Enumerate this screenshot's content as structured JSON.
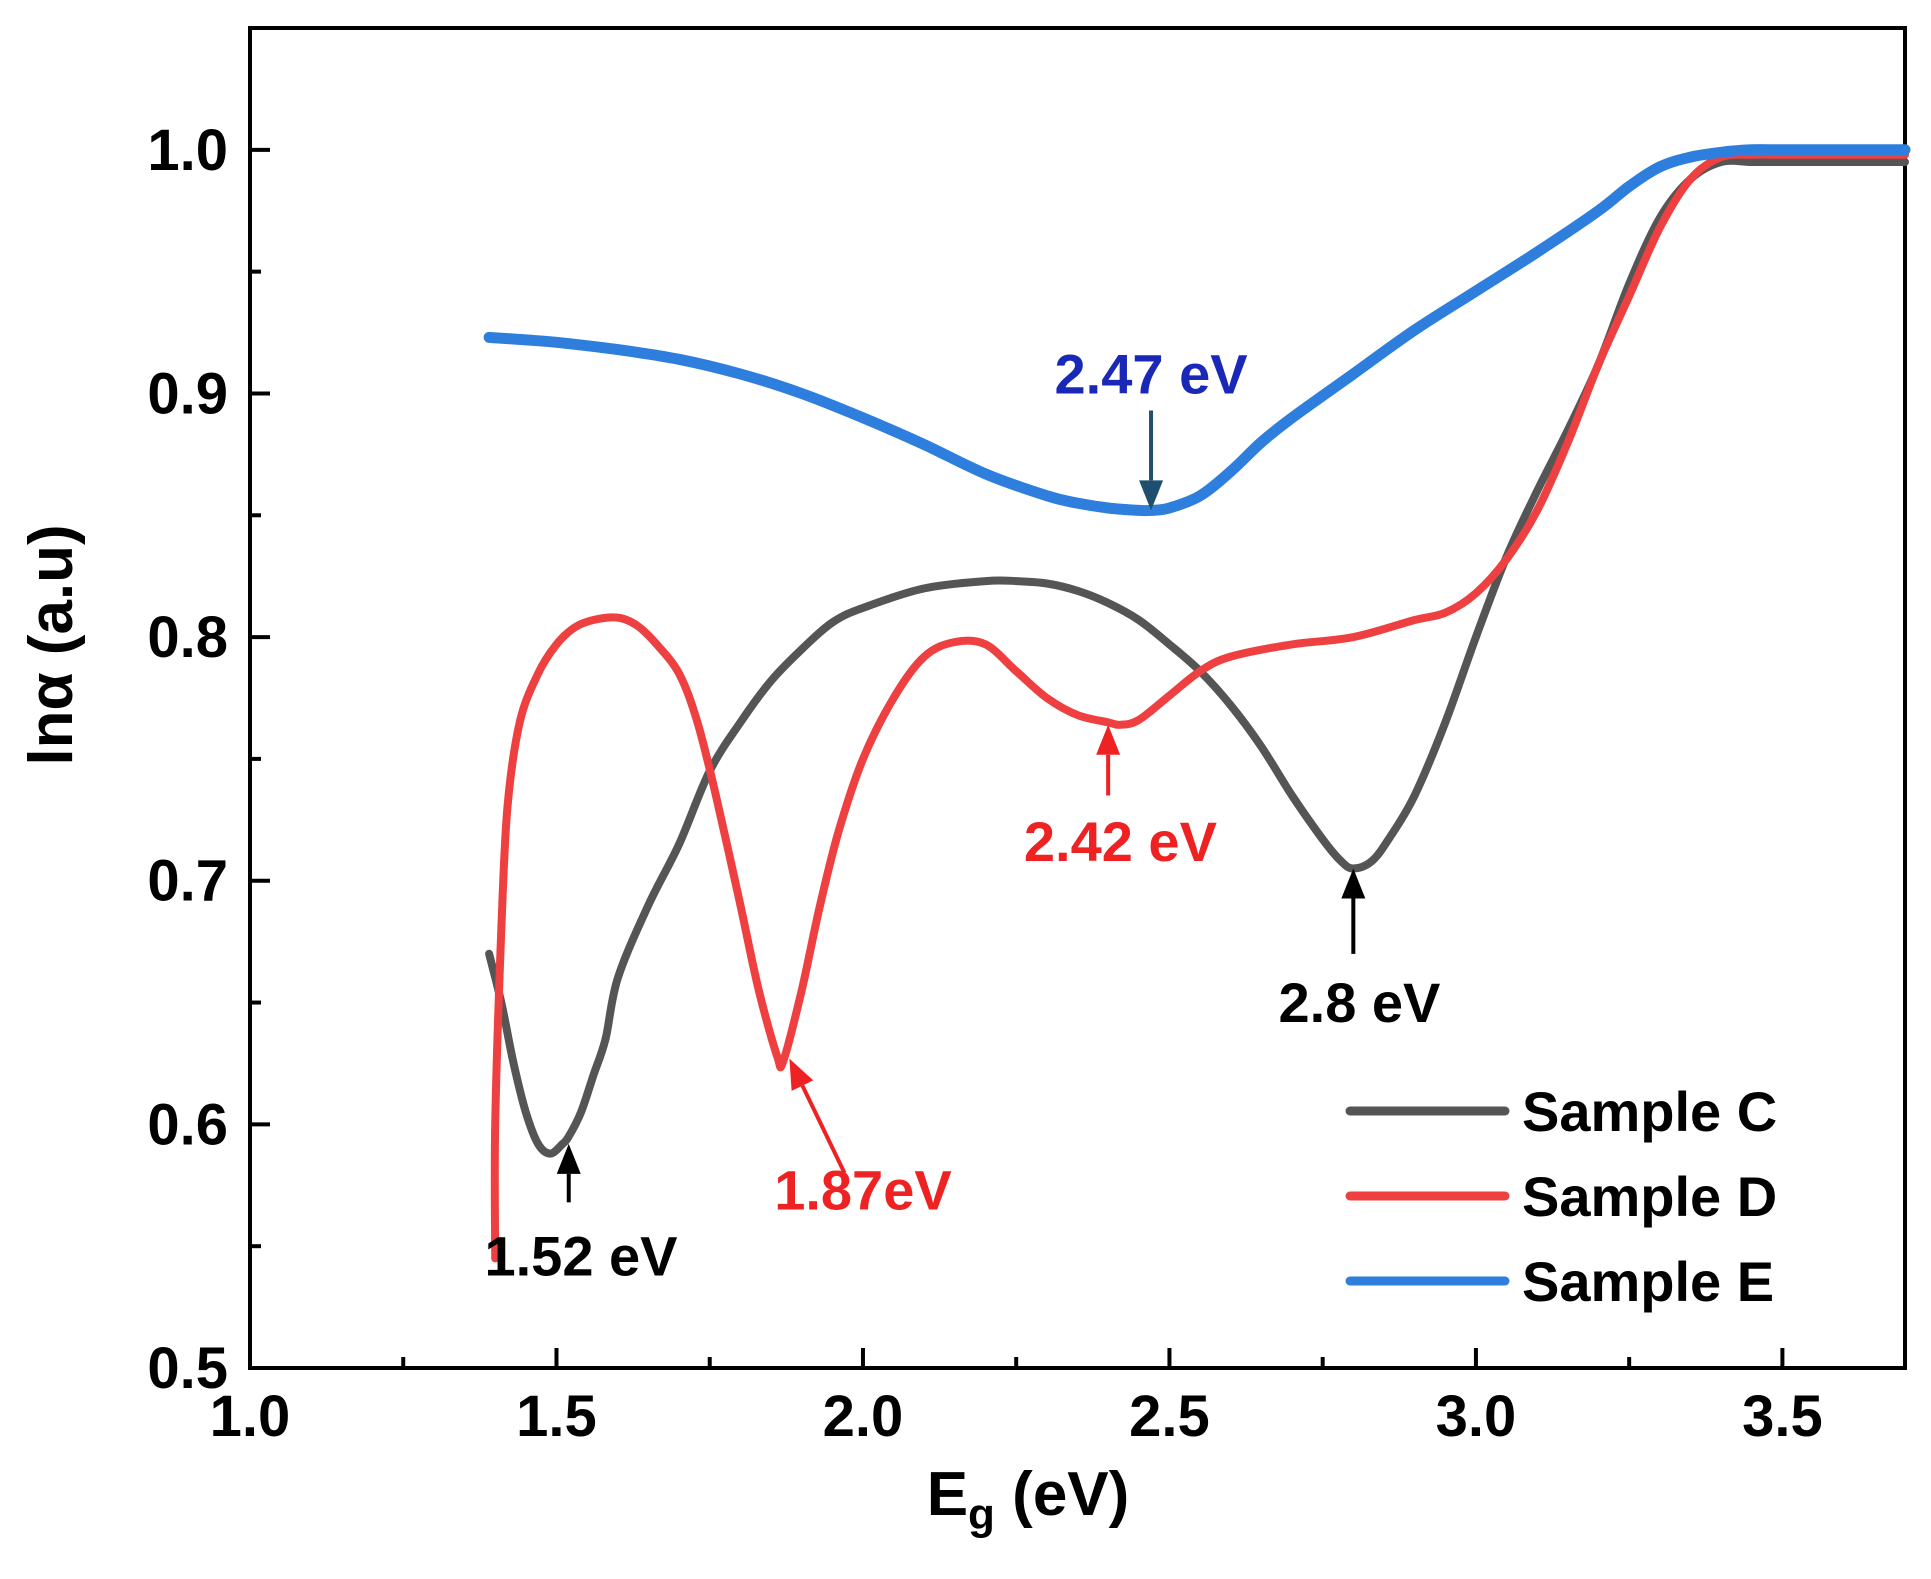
{
  "chart_data": {
    "type": "line",
    "xlabel": "E",
    "xlabel_sub": "g",
    "xlabel_unit": "(eV)",
    "ylabel": "lnα",
    "ylabel_unit": "(a.u)",
    "xlim": [
      1.0,
      3.7
    ],
    "ylim": [
      0.5,
      1.05
    ],
    "xticks": [
      1.0,
      1.5,
      2.0,
      2.5,
      3.0,
      3.5
    ],
    "xtick_labels": [
      "1.0",
      "1.5",
      "2.0",
      "2.5",
      "3.0",
      "3.5"
    ],
    "yticks": [
      0.5,
      0.6,
      0.7,
      0.8,
      0.9,
      1.0
    ],
    "ytick_labels": [
      "0.5",
      "0.6",
      "0.7",
      "0.8",
      "0.9",
      "1.0"
    ],
    "grid": false,
    "legend_position": "bottom-right",
    "series": [
      {
        "name": "Sample C",
        "color": "#555555",
        "x": [
          1.39,
          1.41,
          1.43,
          1.45,
          1.47,
          1.49,
          1.51,
          1.52,
          1.54,
          1.56,
          1.58,
          1.6,
          1.65,
          1.7,
          1.75,
          1.8,
          1.85,
          1.9,
          1.95,
          2.0,
          2.1,
          2.2,
          2.25,
          2.3,
          2.35,
          2.4,
          2.45,
          2.5,
          2.55,
          2.6,
          2.65,
          2.7,
          2.75,
          2.78,
          2.8,
          2.83,
          2.86,
          2.9,
          2.95,
          3.0,
          3.05,
          3.1,
          3.15,
          3.2,
          3.25,
          3.3,
          3.35,
          3.4,
          3.45,
          3.5,
          3.6,
          3.7
        ],
        "y": [
          0.67,
          0.65,
          0.625,
          0.605,
          0.592,
          0.588,
          0.592,
          0.595,
          0.605,
          0.62,
          0.635,
          0.66,
          0.69,
          0.715,
          0.745,
          0.765,
          0.782,
          0.795,
          0.806,
          0.812,
          0.82,
          0.823,
          0.823,
          0.822,
          0.819,
          0.814,
          0.807,
          0.797,
          0.786,
          0.772,
          0.755,
          0.735,
          0.717,
          0.708,
          0.705,
          0.708,
          0.718,
          0.735,
          0.765,
          0.8,
          0.833,
          0.86,
          0.885,
          0.912,
          0.945,
          0.972,
          0.988,
          0.995,
          0.995,
          0.995,
          0.995,
          0.995
        ]
      },
      {
        "name": "Sample D",
        "color": "#ee4040",
        "x": [
          1.4,
          1.4,
          1.41,
          1.42,
          1.44,
          1.47,
          1.5,
          1.53,
          1.56,
          1.6,
          1.63,
          1.66,
          1.7,
          1.73,
          1.76,
          1.8,
          1.83,
          1.86,
          1.87,
          1.9,
          1.93,
          1.96,
          2.0,
          2.05,
          2.1,
          2.15,
          2.2,
          2.25,
          2.3,
          2.35,
          2.4,
          2.42,
          2.45,
          2.5,
          2.55,
          2.6,
          2.7,
          2.8,
          2.9,
          2.95,
          3.0,
          3.05,
          3.1,
          3.15,
          3.2,
          3.25,
          3.3,
          3.35,
          3.4,
          3.45,
          3.5,
          3.6,
          3.7
        ],
        "y": [
          0.545,
          0.6,
          0.68,
          0.73,
          0.765,
          0.785,
          0.797,
          0.804,
          0.807,
          0.808,
          0.805,
          0.798,
          0.785,
          0.765,
          0.735,
          0.69,
          0.655,
          0.628,
          0.626,
          0.655,
          0.69,
          0.72,
          0.75,
          0.775,
          0.792,
          0.798,
          0.797,
          0.786,
          0.775,
          0.768,
          0.765,
          0.764,
          0.766,
          0.776,
          0.786,
          0.792,
          0.797,
          0.8,
          0.807,
          0.81,
          0.818,
          0.832,
          0.852,
          0.88,
          0.912,
          0.94,
          0.968,
          0.988,
          0.997,
          0.998,
          0.998,
          0.998,
          0.998
        ]
      },
      {
        "name": "Sample E",
        "color": "#2e7fdd",
        "x": [
          1.39,
          1.45,
          1.5,
          1.6,
          1.7,
          1.8,
          1.9,
          2.0,
          2.1,
          2.2,
          2.3,
          2.35,
          2.4,
          2.45,
          2.47,
          2.5,
          2.55,
          2.6,
          2.65,
          2.7,
          2.8,
          2.9,
          3.0,
          3.1,
          3.2,
          3.25,
          3.3,
          3.35,
          3.4,
          3.45,
          3.5,
          3.6,
          3.7
        ],
        "y": [
          0.923,
          0.922,
          0.921,
          0.918,
          0.914,
          0.908,
          0.9,
          0.89,
          0.879,
          0.867,
          0.858,
          0.855,
          0.853,
          0.852,
          0.852,
          0.853,
          0.858,
          0.868,
          0.88,
          0.89,
          0.908,
          0.926,
          0.942,
          0.958,
          0.975,
          0.985,
          0.993,
          0.997,
          0.999,
          1.0,
          1.0,
          1.0,
          1.0
        ]
      }
    ],
    "annotations": [
      {
        "text": "2.47 eV",
        "color": "#1a28b8",
        "arrow_color": "#1f4f6e",
        "target": [
          2.47,
          0.852
        ],
        "tail": [
          2.47,
          0.893
        ],
        "label_at": [
          2.47,
          0.9
        ]
      },
      {
        "text": "2.42 eV",
        "color": "#ee2222",
        "arrow_color": "#ee2222",
        "target": [
          2.4,
          0.764
        ],
        "tail": [
          2.4,
          0.735
        ],
        "label_at": [
          2.42,
          0.708
        ]
      },
      {
        "text": "2.8 eV",
        "color": "#000000",
        "arrow_color": "#000000",
        "target": [
          2.8,
          0.705
        ],
        "tail": [
          2.8,
          0.67
        ],
        "label_at": [
          2.81,
          0.642
        ]
      },
      {
        "text": "1.87eV",
        "color": "#ee2222",
        "arrow_color": "#ee2222",
        "target": [
          1.88,
          0.627
        ],
        "tail": [
          1.97,
          0.58
        ],
        "label_at": [
          2.0,
          0.565
        ]
      },
      {
        "text": "1.52 eV",
        "color": "#000000",
        "arrow_color": "#000000",
        "target": [
          1.52,
          0.592
        ],
        "tail": [
          1.52,
          0.568
        ],
        "label_at": [
          1.54,
          0.538
        ]
      }
    ]
  }
}
